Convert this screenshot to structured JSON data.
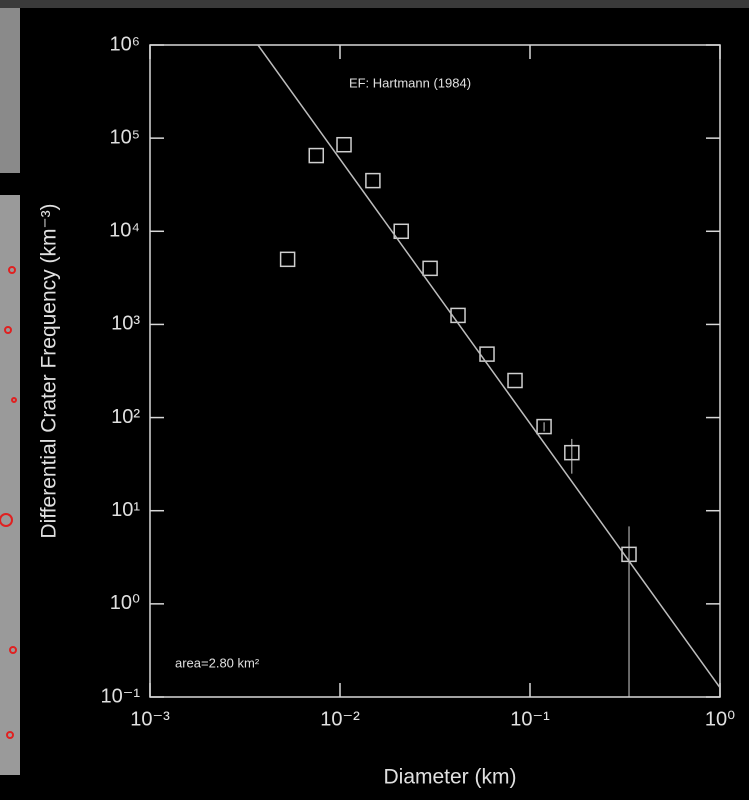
{
  "chart_data": {
    "type": "scatter",
    "x_label": "Diameter (km)",
    "y_label": "Differential Crater Frequency (km⁻³)",
    "annotation": "area=2.80 km²",
    "log_x": true,
    "log_y": true,
    "xlim": [
      0.001,
      1
    ],
    "ylim": [
      0.1,
      1000000
    ],
    "xticks": [
      {
        "value": 0.001,
        "label": "10⁻³"
      },
      {
        "value": 0.01,
        "label": "10⁻²"
      },
      {
        "value": 0.1,
        "label": "10⁻¹"
      },
      {
        "value": 1,
        "label": "10⁰"
      }
    ],
    "yticks": [
      {
        "value": 0.1,
        "label": "10⁻¹"
      },
      {
        "value": 1,
        "label": "10⁰"
      },
      {
        "value": 10,
        "label": "10¹"
      },
      {
        "value": 100,
        "label": "10²"
      },
      {
        "value": 1000,
        "label": "10³"
      },
      {
        "value": 10000,
        "label": "10⁴"
      },
      {
        "value": 100000,
        "label": "10⁵"
      },
      {
        "value": 1000000,
        "label": "10⁶"
      }
    ],
    "series": [
      {
        "type": "scatter",
        "color": "#cfcfcf",
        "x": [
          0.0053,
          0.0075,
          0.0105,
          0.0149,
          0.021,
          0.0298,
          0.0418,
          0.0594,
          0.0834,
          0.1186,
          0.166,
          0.332
        ],
        "values": [
          5000,
          65000,
          85000,
          35000,
          10000,
          4000,
          1250,
          480,
          250,
          80,
          42,
          3.4
        ],
        "errors": [
          null,
          null,
          null,
          null,
          null,
          null,
          null,
          null,
          null,
          9,
          17,
          3.4
        ]
      },
      {
        "type": "line",
        "name": "EF: Hartmann (1984)",
        "color": "#bdbdbd",
        "x": [
          0.0037,
          1
        ],
        "values": [
          1000000,
          0.126
        ]
      }
    ]
  }
}
